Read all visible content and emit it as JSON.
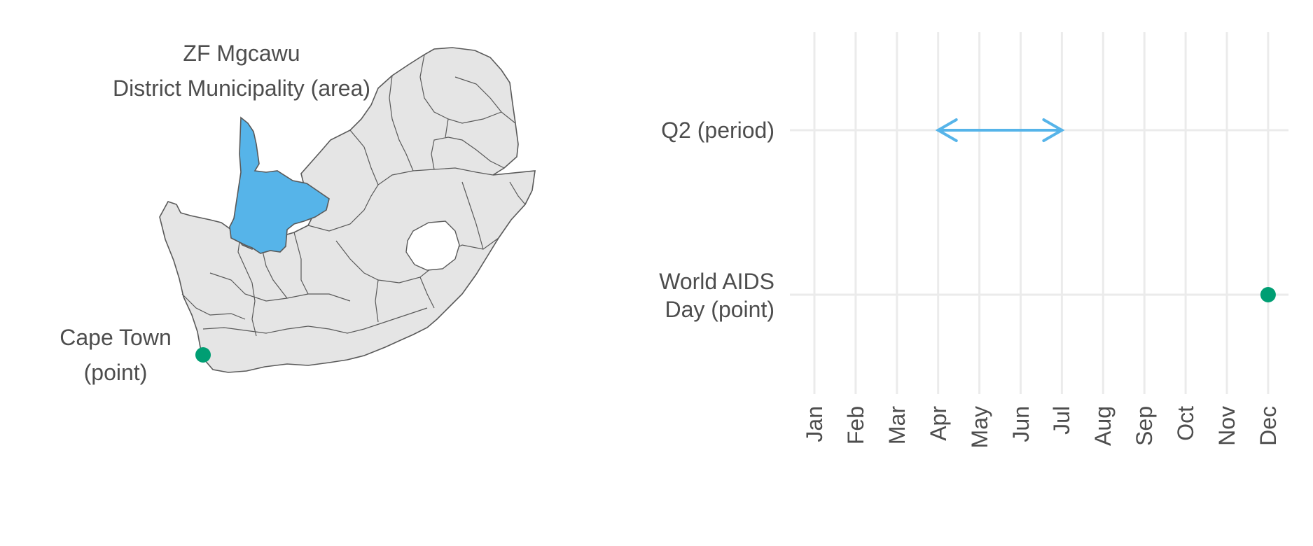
{
  "map": {
    "highlight_label": [
      "ZF Mgcawu",
      "District Municipality (area)"
    ],
    "point_label": [
      "Cape Town",
      "(point)"
    ],
    "fill": "#e5e5e5",
    "border": "#595959",
    "highlight_color": "#56b4e9",
    "point_color": "#009e73"
  },
  "chart_data": {
    "type": "timeline",
    "x": {
      "ticks": [
        "Jan",
        "Feb",
        "Mar",
        "Apr",
        "May",
        "Jun",
        "Jul",
        "Aug",
        "Sep",
        "Oct",
        "Nov",
        "Dec"
      ],
      "range": [
        1,
        12
      ],
      "tick_label_orientation": "vertical"
    },
    "rows": [
      {
        "label": "Q2 (period)",
        "kind": "period",
        "start": "Apr",
        "end": "Jul",
        "color": "#56b4e9"
      },
      {
        "label": [
          "World AIDS",
          "Day (point)"
        ],
        "kind": "point",
        "at": "Dec",
        "color": "#009e73"
      }
    ],
    "grid": true,
    "gridline_color": "#ebebeb"
  }
}
